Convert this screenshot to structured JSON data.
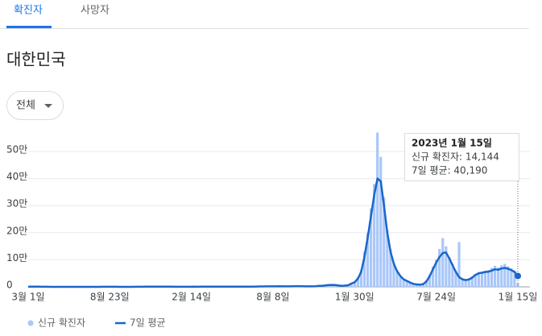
{
  "tabs": [
    "확진자",
    "사망자"
  ],
  "title": "대한민국",
  "filter": "전체",
  "chart_data": {
    "type": "bar-line",
    "categories": [
      "3월 1일",
      null,
      null,
      null,
      null,
      null,
      null,
      null,
      null,
      null,
      null,
      null,
      null,
      null,
      null,
      null,
      null,
      null,
      null,
      null,
      null,
      null,
      null,
      null,
      null,
      "8월 23일",
      null,
      null,
      null,
      null,
      null,
      null,
      null,
      null,
      null,
      null,
      null,
      null,
      null,
      null,
      null,
      null,
      null,
      null,
      null,
      null,
      null,
      null,
      null,
      null,
      "2월 14일",
      null,
      null,
      null,
      null,
      null,
      null,
      null,
      null,
      null,
      null,
      null,
      null,
      null,
      null,
      null,
      null,
      null,
      null,
      null,
      null,
      null,
      null,
      null,
      null,
      "8월 8일",
      null,
      null,
      null,
      null,
      null,
      null,
      null,
      null,
      null,
      null,
      null,
      null,
      null,
      null,
      null,
      null,
      null,
      null,
      null,
      null,
      null,
      null,
      null,
      null,
      "1월 30일",
      null,
      null,
      null,
      null,
      null,
      null,
      null,
      null,
      null,
      null,
      null,
      null,
      null,
      null,
      null,
      null,
      null,
      null,
      null,
      null,
      null,
      null,
      null,
      null,
      "7월 24일",
      null,
      null,
      null,
      null,
      null,
      null,
      null,
      null,
      null,
      null,
      null,
      null,
      null,
      null,
      null,
      null,
      null,
      null,
      null,
      null,
      null,
      null,
      null,
      null,
      "1월 15일"
    ],
    "series": [
      {
        "name": "신규 확진자",
        "color": "#a8c7fa",
        "values": [
          500,
          600,
          700,
          500,
          300,
          200,
          150,
          100,
          60,
          40,
          50,
          60,
          30,
          40,
          50,
          40,
          60,
          30,
          50,
          40,
          50,
          60,
          100,
          300,
          400,
          300,
          250,
          150,
          100,
          90,
          100,
          120,
          130,
          200,
          250,
          400,
          600,
          800,
          1000,
          1100,
          900,
          800,
          600,
          500,
          400,
          380,
          400,
          450,
          420,
          400,
          420,
          460,
          420,
          480,
          520,
          580,
          620,
          680,
          720,
          650,
          580,
          520,
          480,
          600,
          680,
          720,
          600,
          620,
          680,
          900,
          1400,
          1600,
          1700,
          1800,
          1700,
          1800,
          1900,
          2100,
          1800,
          1700,
          1900,
          2300,
          2600,
          3000,
          2400,
          1700,
          1800,
          2000,
          2900,
          3800,
          4500,
          6000,
          7500,
          7200,
          6000,
          4800,
          4300,
          5000,
          7000,
          14000,
          20000,
          36000,
          62000,
          130000,
          200000,
          290000,
          380000,
          570000,
          480000,
          330000,
          210000,
          140000,
          90000,
          60000,
          42000,
          30000,
          23000,
          17000,
          12000,
          9500,
          8500,
          12000,
          25000,
          45000,
          75000,
          100000,
          140000,
          180000,
          150000,
          110000,
          85000,
          60000,
          165000,
          30000,
          26000,
          29000,
          38000,
          48000,
          55000,
          56000,
          60000,
          62000,
          70000,
          78000,
          72000,
          80000,
          85000,
          76000,
          68000,
          60000,
          14144
        ]
      },
      {
        "name": "7일 평균",
        "color": "#1a66c8",
        "values": [
          300,
          500,
          800,
          600,
          400,
          300,
          200,
          100,
          80,
          50,
          40,
          50,
          40,
          30,
          40,
          45,
          50,
          40,
          50,
          40,
          45,
          50,
          60,
          200,
          300,
          350,
          300,
          200,
          120,
          100,
          80,
          100,
          120,
          150,
          200,
          300,
          500,
          700,
          900,
          1000,
          1000,
          900,
          700,
          600,
          450,
          400,
          350,
          400,
          420,
          430,
          400,
          450,
          430,
          450,
          500,
          550,
          600,
          650,
          700,
          680,
          600,
          550,
          500,
          550,
          650,
          700,
          650,
          600,
          620,
          700,
          1300,
          1500,
          1600,
          1700,
          1800,
          1700,
          1800,
          2000,
          1900,
          1800,
          1700,
          2000,
          2400,
          2800,
          2500,
          1800,
          1700,
          1800,
          2500,
          3500,
          4000,
          5500,
          6500,
          7000,
          6500,
          5000,
          4000,
          4500,
          6000,
          12000,
          17000,
          30000,
          55000,
          110000,
          180000,
          260000,
          340000,
          400000,
          390000,
          300000,
          200000,
          130000,
          85000,
          58000,
          40000,
          28000,
          22000,
          16000,
          11000,
          9000,
          8000,
          10000,
          20000,
          40000,
          65000,
          90000,
          110000,
          125000,
          127000,
          105000,
          80000,
          55000,
          36000,
          28000,
          25000,
          27000,
          34000,
          44000,
          50000,
          52000,
          55000,
          56000,
          60000,
          65000,
          63000,
          68000,
          70000,
          67000,
          62000,
          55000,
          40190
        ]
      }
    ],
    "ylim": [
      0,
      600000
    ],
    "yticks": [
      0,
      {
        "value": 100000,
        "label": "10만"
      },
      {
        "value": 200000,
        "label": "20만"
      },
      {
        "value": 300000,
        "label": "30만"
      },
      {
        "value": 400000,
        "label": "40만"
      },
      {
        "value": 500000,
        "label": "50만"
      }
    ],
    "grid": true,
    "tooltip": {
      "title": "2023년 1월 15일",
      "lines": [
        "신규 확진자: 14,144",
        "7일 평균: 40,190"
      ]
    }
  }
}
